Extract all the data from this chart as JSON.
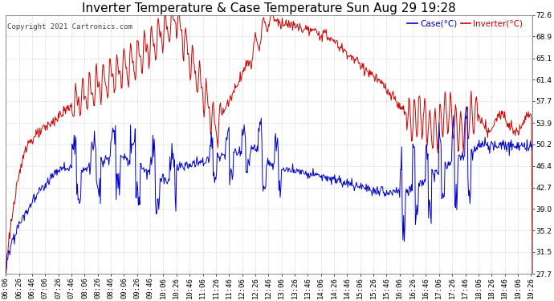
{
  "title": "Inverter Temperature & Case Temperature Sun Aug 29 19:28",
  "copyright": "Copyright 2021 Cartronics.com",
  "legend_case": "Case(°C)",
  "legend_inverter": "Inverter(°C)",
  "yticks": [
    27.7,
    31.5,
    35.2,
    39.0,
    42.7,
    46.4,
    50.2,
    53.9,
    57.7,
    61.4,
    65.1,
    68.9,
    72.6
  ],
  "ymin": 27.7,
  "ymax": 72.6,
  "background_color": "#ffffff",
  "grid_color": "#bbbbbb",
  "case_color": "#0000cc",
  "inverter_color": "#cc0000",
  "title_fontsize": 11,
  "tick_fontsize": 6.5,
  "figwidth": 6.9,
  "figheight": 3.75,
  "dpi": 100
}
